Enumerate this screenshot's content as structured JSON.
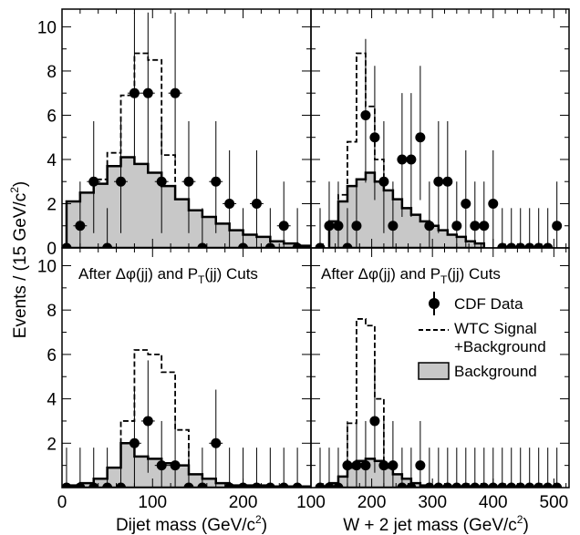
{
  "figure": {
    "y_title": "Events / (15 GeV/c",
    "y_title_sup": "2",
    "y_title_tail": ")",
    "annotation_a": "After Δφ(jj) and P",
    "annotation_sub": "T",
    "annotation_b": "(jj) Cuts"
  },
  "legend": {
    "data": "CDF Data",
    "signal_line1": "WTC Signal",
    "signal_line2": "+Background",
    "background": "Background"
  },
  "chart_data": [
    {
      "type": "line",
      "panel": "top-left",
      "xlim": [
        0,
        275
      ],
      "ylim": [
        0,
        10.8
      ],
      "bin_width": 15,
      "edges": [
        5,
        20,
        35,
        50,
        65,
        80,
        95,
        110,
        125,
        140,
        155,
        170,
        185,
        200,
        215,
        230,
        245,
        260,
        275
      ],
      "background": [
        2.1,
        2.5,
        2.9,
        3.7,
        4.1,
        3.8,
        3.4,
        2.8,
        2.2,
        1.7,
        1.4,
        1.1,
        0.8,
        0.6,
        0.5,
        0.3,
        0.2,
        0.1
      ],
      "signal_plus_background": [
        2.1,
        2.5,
        3.1,
        4.3,
        6.9,
        8.8,
        8.5,
        4.2,
        2.2,
        1.7,
        1.4,
        1.1,
        0.8,
        0.6,
        0.5,
        0.3,
        0.2,
        0.1
      ],
      "data": {
        "x": [
          5,
          20,
          35,
          50,
          65,
          80,
          95,
          110,
          125,
          140,
          155,
          170,
          185,
          200,
          215,
          230,
          245,
          260
        ],
        "y": [
          0,
          1,
          3,
          0,
          3,
          7,
          7,
          3,
          7,
          3,
          0,
          3,
          2,
          0,
          2,
          0,
          1,
          0
        ]
      },
      "yticks": [
        0,
        2,
        4,
        6,
        8,
        10
      ],
      "xticks": [
        0,
        100,
        200
      ]
    },
    {
      "type": "line",
      "panel": "top-right",
      "xlim": [
        100,
        525
      ],
      "ylim": [
        0,
        10.8
      ],
      "bin_width": 15,
      "edges": [
        130,
        145,
        160,
        175,
        190,
        205,
        220,
        235,
        250,
        265,
        280,
        295,
        310,
        325,
        340,
        355,
        370,
        385
      ],
      "background": [
        1.2,
        2.1,
        2.8,
        3.1,
        3.4,
        3.0,
        2.6,
        2.2,
        1.8,
        1.5,
        1.2,
        1.0,
        0.8,
        0.6,
        0.5,
        0.3,
        0.2
      ],
      "signal_plus_background": [
        1.2,
        2.4,
        4.8,
        8.8,
        6.4,
        4.0,
        2.6,
        2.2,
        1.8,
        1.5,
        1.2,
        1.0,
        0.8,
        0.6,
        0.5,
        0.3,
        0.2
      ],
      "data": {
        "x": [
          115,
          130,
          145,
          160,
          175,
          190,
          205,
          220,
          235,
          250,
          265,
          280,
          295,
          310,
          325,
          340,
          355,
          370,
          385,
          400,
          415,
          430,
          445,
          460,
          475,
          490,
          505
        ],
        "y": [
          0,
          1,
          1,
          0,
          1,
          6,
          5,
          3,
          1,
          4,
          4,
          5,
          1,
          3,
          3,
          1,
          2,
          1,
          1,
          2,
          0,
          0,
          0,
          0,
          0,
          0,
          1
        ]
      },
      "yticks": [
        0,
        2,
        4,
        6,
        8,
        10
      ],
      "xticks": [
        100,
        200,
        300,
        400,
        500
      ]
    },
    {
      "type": "line",
      "panel": "bottom-left",
      "xlim": [
        0,
        275
      ],
      "ylim": [
        0,
        10.8
      ],
      "bin_width": 15,
      "edges": [
        5,
        20,
        35,
        50,
        65,
        80,
        95,
        110,
        125,
        140,
        155,
        170,
        185,
        200,
        215,
        230,
        245,
        260,
        275
      ],
      "background": [
        0.1,
        0.2,
        0.4,
        0.9,
        2.0,
        1.4,
        1.3,
        1.1,
        1.0,
        0.6,
        0.4,
        0.2,
        0.1,
        0.1,
        0.1,
        0.05,
        0.05,
        0.05
      ],
      "signal_plus_background": [
        0.1,
        0.2,
        0.4,
        0.9,
        3.0,
        6.2,
        6.0,
        5.2,
        2.6,
        0.6,
        0.4,
        0.2,
        0.1,
        0.1,
        0.1,
        0.05,
        0.05,
        0.05
      ],
      "data": {
        "x": [
          5,
          20,
          35,
          50,
          65,
          80,
          95,
          110,
          125,
          140,
          155,
          170,
          185,
          200,
          215,
          230,
          245,
          260
        ],
        "y": [
          0,
          0,
          0,
          0,
          0,
          2,
          3,
          1,
          1,
          0,
          0,
          2,
          0,
          0,
          0,
          0,
          0,
          0
        ]
      },
      "yticks": [
        0,
        2,
        4,
        6,
        8,
        10
      ],
      "xticks": [
        0,
        100,
        200
      ],
      "xlabel": "Dijet mass (GeV/c",
      "xlabel_sup": "2",
      "xlabel_tail": ")"
    },
    {
      "type": "line",
      "panel": "bottom-right",
      "xlim": [
        100,
        525
      ],
      "ylim": [
        0,
        10.8
      ],
      "bin_width": 15,
      "edges": [
        130,
        145,
        160,
        175,
        190,
        205,
        220,
        235,
        250,
        265,
        280,
        295,
        310,
        325,
        340,
        355,
        370,
        385
      ],
      "background": [
        0.2,
        0.5,
        0.9,
        1.2,
        1.3,
        1.2,
        0.9,
        0.6,
        0.4,
        0.2,
        0.1,
        0.05,
        0.05,
        0.05,
        0.05,
        0.05,
        0.05
      ],
      "signal_plus_background": [
        0.2,
        0.5,
        2.9,
        7.6,
        7.3,
        4.0,
        0.9,
        0.6,
        0.4,
        0.2,
        0.1,
        0.05,
        0.05,
        0.05,
        0.05,
        0.05,
        0.05
      ],
      "data": {
        "x": [
          115,
          130,
          145,
          160,
          175,
          190,
          205,
          220,
          235,
          250,
          265,
          280,
          295,
          310,
          325,
          340,
          355,
          370,
          385,
          400,
          415,
          430,
          445,
          460,
          475,
          490,
          505
        ],
        "y": [
          0,
          0,
          0,
          1,
          1,
          1,
          3,
          1,
          1,
          0,
          0,
          1,
          0,
          0,
          0,
          0,
          0,
          0,
          0,
          0,
          0,
          0,
          0,
          0,
          0,
          0,
          0
        ]
      },
      "yticks": [
        0,
        2,
        4,
        6,
        8,
        10
      ],
      "xticks": [
        100,
        200,
        300,
        400,
        500
      ],
      "xlabel": "W + 2 jet mass (GeV/c",
      "xlabel_sup": "2",
      "xlabel_tail": ")"
    }
  ]
}
